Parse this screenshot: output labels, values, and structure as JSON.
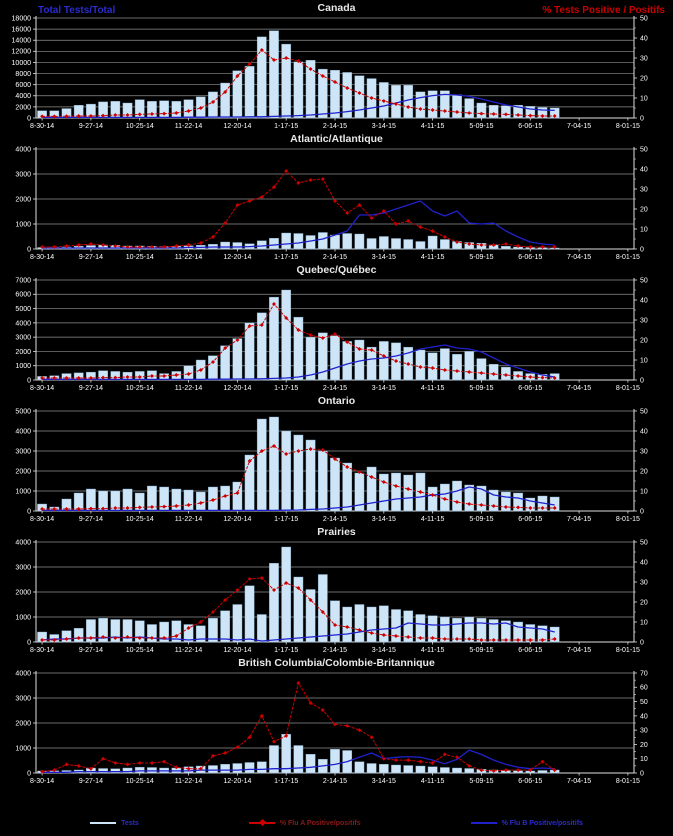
{
  "header": {
    "left_label": "Total Tests/Total",
    "right_label": "% Tests Positive / Positifs"
  },
  "colors": {
    "background": "#000000",
    "bar_fill": "#cde5f7",
    "bar_stroke": "#7da9c8",
    "flu_a_line": "#cc0000",
    "flu_b_line": "#2121cc",
    "gridline": "#8f8f8f",
    "axis": "#e0e0e0",
    "tick_text": "#ffffff",
    "title_text": "#e8e8e8"
  },
  "legend": {
    "items": [
      {
        "label": "Tests",
        "swatch": "bar-line",
        "swatch_color": "#cde5f7",
        "text_color": "#2b2bd0"
      },
      {
        "label": "% Flu A Positive/positifs",
        "swatch": "line-marker",
        "swatch_color": "#cc0000",
        "text_color": "#8b1a1a"
      },
      {
        "label": "% Flu B Positive/positifs",
        "swatch": "line",
        "swatch_color": "#2121cc",
        "text_color": "#2b2bd0"
      }
    ]
  },
  "x_axis": {
    "tick_labels": [
      "8-30-14",
      "9-27-14",
      "10-25-14",
      "11-22-14",
      "12-20-14",
      "1-17-15",
      "2-14-15",
      "3-14-15",
      "4-11-15",
      "5-09-15",
      "6-06-15",
      "7-04-15",
      "8-01-15"
    ],
    "weeks_per_tick": 4,
    "total_weeks": 49
  },
  "chart_data": [
    {
      "type": "bar+line",
      "title": "Canada",
      "y_left_max": 18000,
      "y_left_step": 2000,
      "y_right_max": 50,
      "y_right_step": 10,
      "bars": [
        1300,
        1300,
        1700,
        2300,
        2500,
        2900,
        3000,
        2700,
        3300,
        3000,
        3100,
        3000,
        3300,
        3800,
        4700,
        6300,
        8500,
        9300,
        14600,
        15700,
        13300,
        10100,
        10400,
        8800,
        8600,
        8200,
        7600,
        7100,
        6400,
        5900,
        5900,
        4700,
        4900,
        4900,
        4200,
        3500,
        2700,
        2300,
        2200,
        2300,
        2100,
        1900,
        1800
      ],
      "flu_a_pct": [
        0.8,
        0.8,
        0.9,
        1,
        1,
        1.2,
        1.5,
        1.5,
        1.8,
        2,
        2.2,
        2.5,
        3.5,
        5,
        8,
        13,
        21,
        27,
        34,
        29,
        30,
        28.5,
        24.5,
        21,
        18,
        15,
        12.5,
        10,
        8.5,
        7,
        5.5,
        4.5,
        4,
        3.5,
        3,
        2.5,
        2.2,
        2,
        1.8,
        1.5,
        1.2,
        1,
        1
      ],
      "flu_b_pct": [
        0.3,
        0.3,
        0.3,
        0.3,
        0.3,
        0.3,
        0.3,
        0.3,
        0.3,
        0.3,
        0.3,
        0.3,
        0.4,
        0.4,
        0.5,
        0.5,
        0.5,
        0.6,
        0.6,
        0.8,
        1,
        1.2,
        1.5,
        2,
        2.5,
        3.2,
        4,
        5,
        6,
        7.5,
        9,
        10.2,
        11.2,
        11.8,
        11.5,
        10.8,
        9.5,
        8,
        6.5,
        5.5,
        4.5,
        4,
        3.8
      ]
    },
    {
      "type": "bar+line",
      "title": "Atlantic/Atlantique",
      "y_left_max": 4000,
      "y_left_step": 1000,
      "y_right_max": 50,
      "y_right_step": 10,
      "bars": [
        60,
        70,
        80,
        110,
        140,
        160,
        150,
        120,
        120,
        110,
        100,
        110,
        130,
        150,
        190,
        280,
        260,
        210,
        330,
        430,
        640,
        620,
        540,
        660,
        560,
        620,
        600,
        420,
        500,
        420,
        380,
        300,
        520,
        380,
        300,
        260,
        230,
        170,
        110,
        80,
        60,
        50,
        40
      ],
      "flu_a_pct": [
        1,
        1,
        1.5,
        2,
        2.5,
        2,
        1.5,
        1,
        1,
        1,
        1,
        1.5,
        2,
        3,
        6,
        13,
        22,
        24,
        26,
        31,
        39,
        33,
        34.5,
        35,
        24,
        18,
        22,
        15.5,
        19,
        12.5,
        14,
        11,
        9,
        6,
        3.5,
        2.5,
        2,
        2,
        2.5,
        1.5,
        1,
        1,
        1
      ],
      "flu_b_pct": [
        0.5,
        0.5,
        0.5,
        0.5,
        0.5,
        0.5,
        0.5,
        0.5,
        0.5,
        0.5,
        0.5,
        0.5,
        0.8,
        0.8,
        1,
        1,
        1,
        1.2,
        1.5,
        2,
        2.5,
        3,
        4,
        5,
        7,
        9,
        17,
        17,
        18,
        20,
        22,
        24,
        19,
        16.5,
        19,
        13,
        12.5,
        13,
        9,
        6,
        3.5,
        2.5,
        2
      ]
    },
    {
      "type": "bar+line",
      "title": "Quebec/Québec",
      "y_left_max": 7000,
      "y_left_step": 1000,
      "y_right_max": 50,
      "y_right_step": 10,
      "bars": [
        250,
        300,
        450,
        500,
        550,
        650,
        600,
        550,
        600,
        650,
        450,
        600,
        1000,
        1400,
        1700,
        2400,
        2900,
        4000,
        4700,
        5800,
        6300,
        4400,
        3000,
        3300,
        3100,
        2700,
        2800,
        2300,
        2700,
        2600,
        2300,
        2100,
        1900,
        2200,
        1800,
        2000,
        1500,
        1100,
        900,
        600,
        450,
        400,
        450
      ],
      "flu_a_pct": [
        1,
        1,
        1,
        1,
        1,
        1.2,
        1.2,
        1.5,
        1.5,
        2,
        2,
        2.5,
        3,
        5,
        9,
        16,
        20,
        27,
        27.5,
        38,
        31,
        25,
        22.5,
        21,
        23,
        19,
        15.5,
        15,
        12,
        9.5,
        8,
        6.5,
        6,
        5,
        4.5,
        4,
        3.5,
        3,
        2.5,
        2,
        1.5,
        1.2,
        1
      ],
      "flu_b_pct": [
        0.3,
        0.3,
        0.3,
        0.3,
        0.3,
        0.3,
        0.3,
        0.3,
        0.3,
        0.3,
        0.3,
        0.3,
        0.3,
        0.3,
        0.4,
        0.4,
        0.5,
        0.5,
        0.6,
        0.8,
        1,
        1.5,
        2.5,
        4,
        6,
        8,
        9.5,
        10.5,
        11,
        12,
        13.5,
        15.5,
        16.5,
        17.5,
        16,
        15.5,
        14,
        11,
        8,
        6,
        4,
        2.5,
        1.5
      ]
    },
    {
      "type": "bar+line",
      "title": "Ontario",
      "y_left_max": 5000,
      "y_left_step": 1000,
      "y_right_max": 50,
      "y_right_step": 10,
      "bars": [
        350,
        200,
        600,
        900,
        1100,
        1000,
        1000,
        1100,
        900,
        1250,
        1200,
        1100,
        1050,
        950,
        1200,
        1250,
        1450,
        2800,
        4600,
        4700,
        4000,
        3800,
        3550,
        3000,
        2650,
        2400,
        1900,
        2200,
        1850,
        1900,
        1800,
        1900,
        1200,
        1350,
        1500,
        1300,
        1250,
        1050,
        950,
        900,
        650,
        750,
        700
      ],
      "flu_a_pct": [
        1,
        1,
        1,
        1,
        1.2,
        1.2,
        1.5,
        1.5,
        1.8,
        2,
        2.2,
        2.5,
        3,
        4,
        5.5,
        7.5,
        9,
        25,
        30,
        32.5,
        28.5,
        30,
        31,
        30.5,
        26,
        22,
        19.5,
        17,
        14.5,
        12.5,
        11,
        9.5,
        8,
        6,
        4.5,
        3.5,
        3,
        2.5,
        2,
        1.8,
        1.5,
        1.5,
        1.5
      ],
      "flu_b_pct": [
        0.3,
        0.3,
        0.3,
        0.3,
        0.3,
        0.3,
        0.3,
        0.3,
        0.3,
        0.3,
        0.3,
        0.3,
        0.3,
        0.3,
        0.3,
        0.3,
        0.3,
        0.3,
        0.3,
        0.3,
        0.4,
        0.5,
        0.8,
        1,
        1.5,
        2,
        3,
        4,
        5,
        6,
        6.5,
        7,
        8,
        8.5,
        10,
        12,
        11,
        8,
        7,
        6.5,
        5,
        4,
        3
      ]
    },
    {
      "type": "bar+line",
      "title": "Prairies",
      "y_left_max": 4000,
      "y_left_step": 1000,
      "y_right_max": 50,
      "y_right_step": 10,
      "bars": [
        400,
        300,
        450,
        550,
        900,
        950,
        900,
        900,
        850,
        700,
        800,
        850,
        700,
        650,
        950,
        1250,
        1500,
        2250,
        1100,
        3150,
        3800,
        2600,
        2100,
        2700,
        1650,
        1400,
        1500,
        1400,
        1450,
        1300,
        1250,
        1100,
        1050,
        1000,
        950,
        1000,
        950,
        900,
        850,
        800,
        700,
        650,
        600
      ],
      "flu_a_pct": [
        1,
        1,
        1.5,
        2,
        2,
        2.5,
        2,
        2.5,
        2,
        2,
        2,
        3,
        7,
        10,
        15,
        21,
        26,
        31.5,
        32,
        26,
        29.5,
        27,
        21,
        15,
        8.5,
        7.5,
        6,
        4.5,
        3.5,
        3,
        2.5,
        2,
        2,
        1.5,
        1.5,
        1.5,
        1,
        1,
        1,
        1,
        1,
        1,
        1.5
      ],
      "flu_b_pct": [
        1,
        1.5,
        1.5,
        2,
        2,
        2,
        2.5,
        2,
        2.5,
        2,
        1.5,
        1.5,
        1,
        1.5,
        1.5,
        1.5,
        1,
        1.5,
        0.5,
        1,
        1.5,
        2,
        2.5,
        3,
        3.5,
        4,
        5,
        6,
        6.5,
        7,
        9.5,
        9,
        8.5,
        8.5,
        9,
        9.5,
        9.5,
        9,
        9.5,
        7.5,
        7,
        6.5,
        5
      ]
    },
    {
      "type": "bar+line",
      "title": "British Columbia/Colombie-Britannique",
      "y_left_max": 4000,
      "y_left_step": 1000,
      "y_right_max": 70,
      "y_right_step": 10,
      "bars": [
        80,
        90,
        100,
        120,
        200,
        180,
        170,
        200,
        230,
        220,
        200,
        200,
        250,
        280,
        300,
        350,
        380,
        420,
        450,
        1100,
        1550,
        1100,
        750,
        550,
        950,
        900,
        450,
        380,
        350,
        320,
        300,
        280,
        250,
        220,
        200,
        180,
        150,
        120,
        100,
        90,
        80,
        100,
        120
      ],
      "flu_a_pct": [
        1,
        2,
        6,
        5,
        3,
        10,
        7,
        6,
        7,
        7,
        8,
        4,
        3,
        3,
        12,
        14,
        18,
        25,
        40,
        22,
        26,
        63,
        49,
        44,
        34,
        33,
        30,
        25,
        10,
        9,
        9,
        8,
        7,
        13,
        11,
        5,
        2,
        1.5,
        2,
        2,
        2,
        8,
        2
      ],
      "flu_b_pct": [
        0.5,
        0.5,
        0.5,
        1,
        1,
        1,
        1,
        1,
        1.5,
        1.5,
        1.5,
        1.5,
        1.5,
        2,
        2,
        2,
        2,
        2.5,
        2.5,
        3,
        3,
        3.5,
        4,
        5,
        6,
        8,
        11,
        14,
        10,
        11,
        11.5,
        11,
        9,
        6.5,
        9.5,
        16,
        13,
        9,
        6,
        4,
        3,
        3.5,
        3
      ]
    }
  ]
}
